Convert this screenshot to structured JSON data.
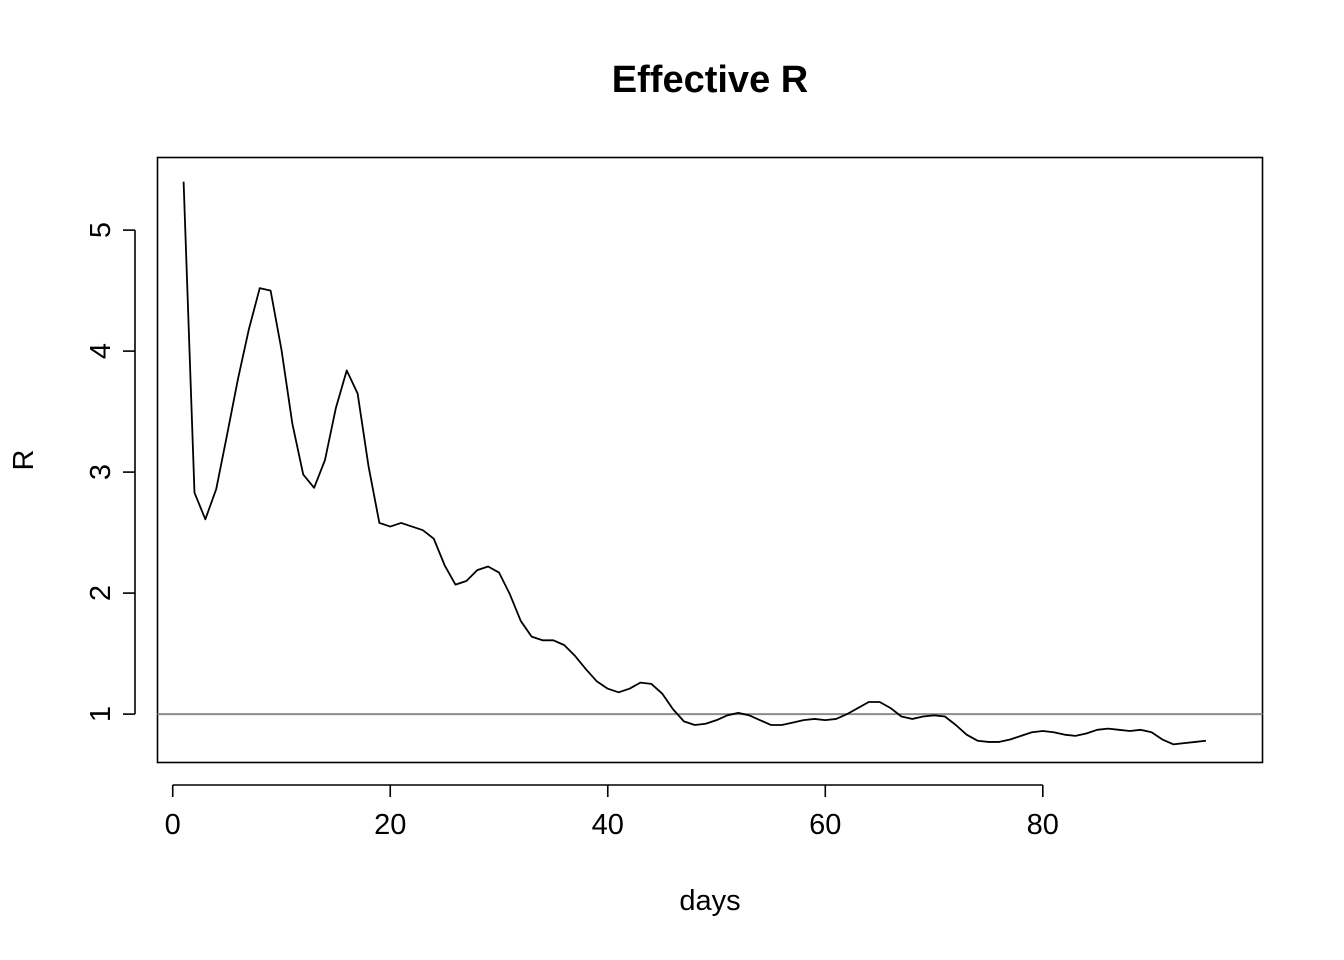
{
  "chart_data": {
    "type": "line",
    "title": "Effective R",
    "xlabel": "days",
    "ylabel": "R",
    "xlim": [
      -1.4,
      100.2
    ],
    "ylim": [
      0.6,
      5.6
    ],
    "xticks": [
      0,
      20,
      40,
      60,
      80
    ],
    "yticks": [
      1,
      2,
      3,
      4,
      5
    ],
    "grid": false,
    "legend": "none",
    "reference_line": {
      "y": 1,
      "color": "#8c8c8c"
    },
    "series": [
      {
        "color": "#000000",
        "x": [
          1,
          2,
          3,
          4,
          5,
          6,
          7,
          8,
          9,
          10,
          11,
          12,
          13,
          14,
          15,
          16,
          17,
          18,
          19,
          20,
          21,
          22,
          23,
          24,
          25,
          26,
          27,
          28,
          29,
          30,
          31,
          32,
          33,
          34,
          35,
          36,
          37,
          38,
          39,
          40,
          41,
          42,
          43,
          44,
          45,
          46,
          47,
          48,
          49,
          50,
          51,
          52,
          53,
          54,
          55,
          56,
          57,
          58,
          59,
          60,
          61,
          62,
          63,
          64,
          65,
          66,
          67,
          68,
          69,
          70,
          71,
          72,
          73,
          74,
          75,
          76,
          77,
          78,
          79,
          80,
          81,
          82,
          83,
          84,
          85,
          86,
          87,
          88,
          89,
          90,
          91,
          92,
          93,
          94,
          95
        ],
        "values": [
          5.4,
          2.83,
          2.61,
          2.86,
          3.31,
          3.77,
          4.18,
          4.52,
          4.5,
          4.01,
          3.4,
          2.98,
          2.87,
          3.1,
          3.53,
          3.84,
          3.65,
          3.05,
          2.58,
          2.55,
          2.58,
          2.55,
          2.52,
          2.45,
          2.23,
          2.07,
          2.1,
          2.19,
          2.22,
          2.17,
          1.99,
          1.77,
          1.64,
          1.61,
          1.61,
          1.57,
          1.48,
          1.37,
          1.27,
          1.21,
          1.18,
          1.21,
          1.26,
          1.25,
          1.17,
          1.04,
          0.94,
          0.91,
          0.92,
          0.95,
          0.99,
          1.01,
          0.99,
          0.95,
          0.91,
          0.91,
          0.93,
          0.95,
          0.96,
          0.95,
          0.96,
          1.0,
          1.05,
          1.1,
          1.1,
          1.05,
          0.98,
          0.96,
          0.98,
          0.99,
          0.98,
          0.91,
          0.83,
          0.78,
          0.77,
          0.77,
          0.79,
          0.82,
          0.85,
          0.86,
          0.85,
          0.83,
          0.82,
          0.84,
          0.87,
          0.88,
          0.87,
          0.86,
          0.87,
          0.85,
          0.79,
          0.75,
          0.76,
          0.77,
          0.78
        ]
      }
    ]
  }
}
